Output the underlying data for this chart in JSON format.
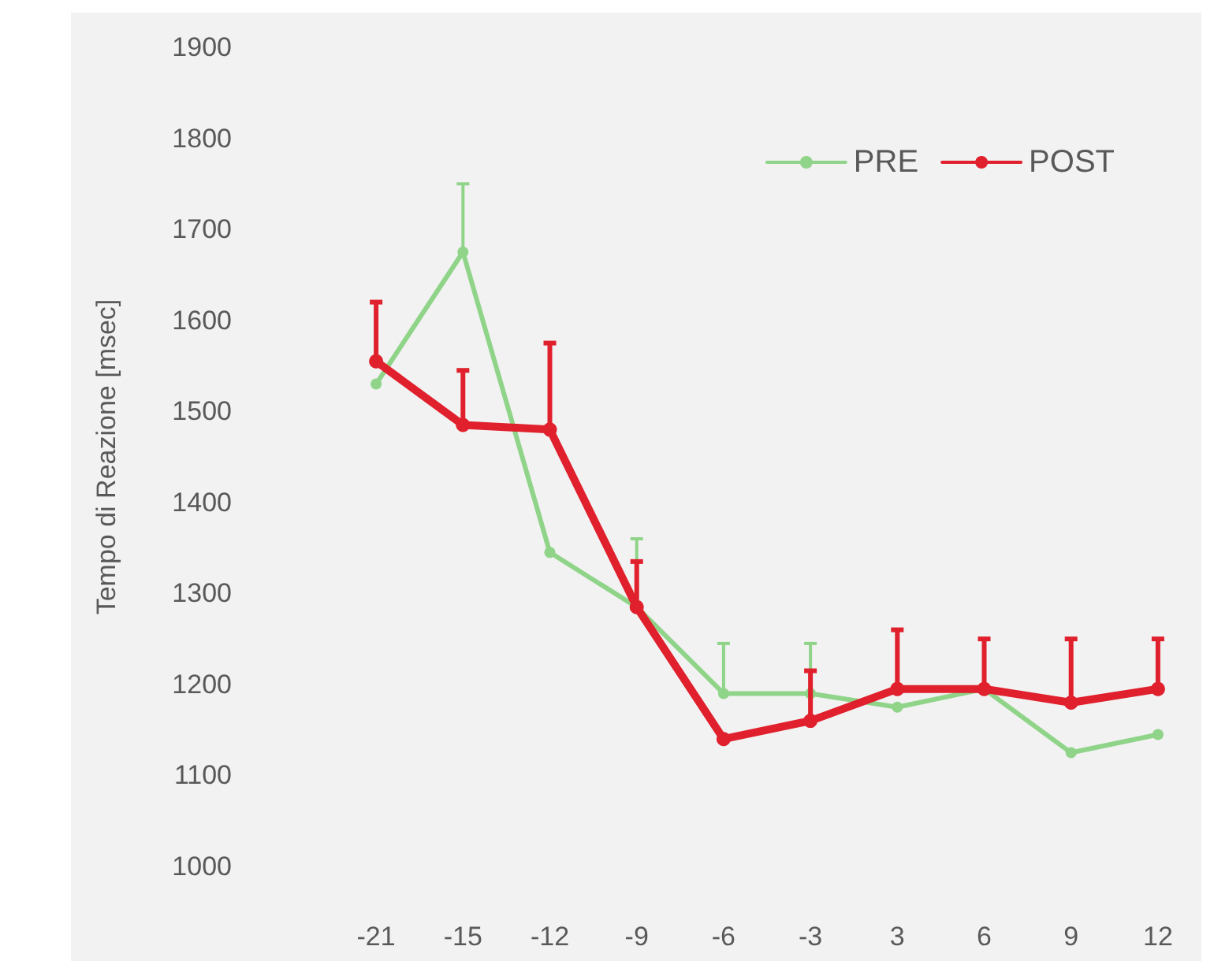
{
  "chart_data": {
    "type": "line",
    "ylabel": "Tempo di Reazione [msec]",
    "categories": [
      "-21",
      "-15",
      "-12",
      "-9",
      "-6",
      "-3",
      "3",
      "6",
      "9",
      "12"
    ],
    "ylim": [
      1000,
      1900
    ],
    "yticks": [
      1000,
      1100,
      1200,
      1300,
      1400,
      1500,
      1600,
      1700,
      1800,
      1900
    ],
    "grid": false,
    "legend": "top right",
    "marker": "circle",
    "series": [
      {
        "name": "PRE",
        "color": "#8fd488",
        "values": [
          1530,
          1675,
          1345,
          1285,
          1190,
          1190,
          1175,
          1195,
          1125,
          1145
        ],
        "errors": [
          null,
          [
            1675,
            1750
          ],
          null,
          [
            1285,
            1360
          ],
          [
            1190,
            1245
          ],
          [
            1190,
            1245
          ],
          null,
          null,
          null,
          null
        ]
      },
      {
        "name": "POST",
        "color": "#e0202c",
        "values": [
          1555,
          1485,
          1480,
          1285,
          1140,
          1160,
          1195,
          1195,
          1180,
          1195
        ],
        "errors": [
          [
            1555,
            1620
          ],
          [
            1485,
            1545
          ],
          [
            1480,
            1575
          ],
          [
            1285,
            1335
          ],
          null,
          [
            1160,
            1215
          ],
          [
            1195,
            1260
          ],
          [
            1195,
            1250
          ],
          [
            1180,
            1250
          ],
          [
            1195,
            1250
          ]
        ]
      }
    ]
  }
}
